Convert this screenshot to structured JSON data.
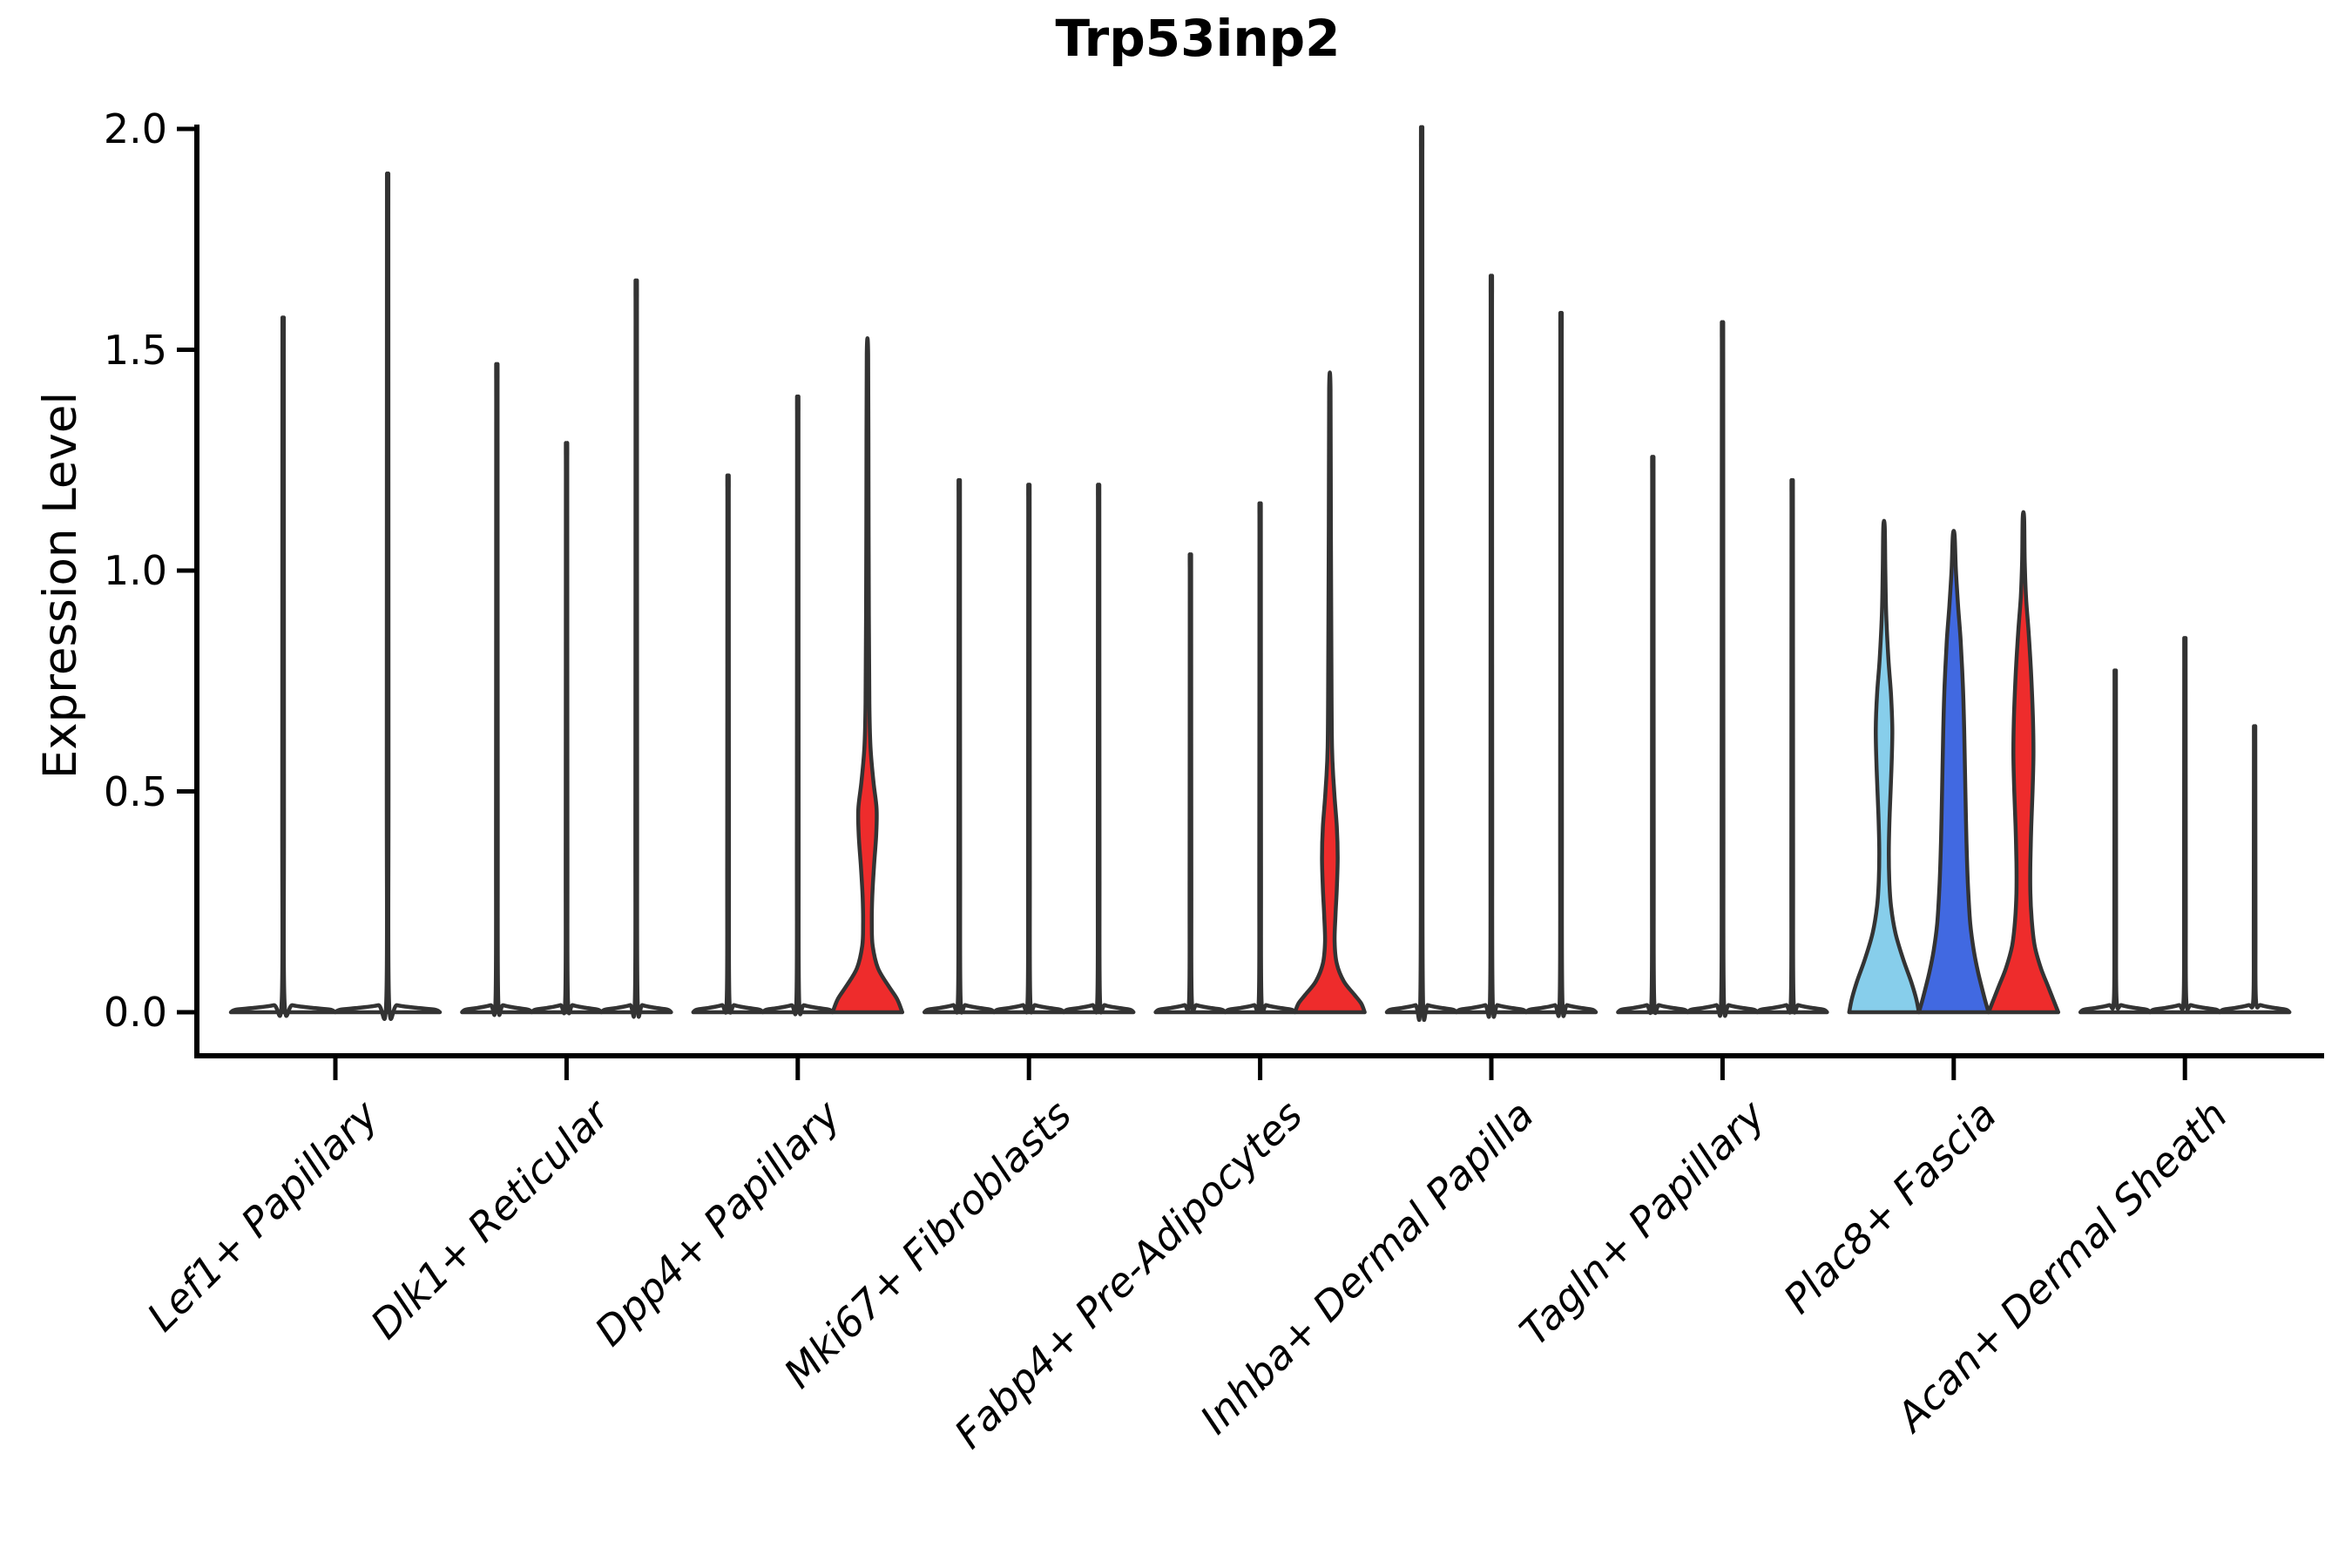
{
  "chart_data": {
    "type": "violin",
    "title": "Trp53inp2",
    "ylabel": "Expression Level",
    "xlabel": "",
    "ylim": [
      -0.095,
      2.006
    ],
    "yticks": [
      0.0,
      0.5,
      1.0,
      1.5,
      2.0
    ],
    "ytick_labels": [
      "0.0",
      "0.5",
      "1.0",
      "1.5",
      "2.0"
    ],
    "grid": false,
    "legend": "none",
    "x_tick_rotation": 45,
    "x_tick_style": "italic",
    "colors": {
      "violin_outline": "#333333",
      "axis": "#000000",
      "white_fill": "#FFFFFF",
      "light_blue_fill": "#87CEEB",
      "dark_blue_fill": "#4169E1",
      "red_fill": "#EE2C2C"
    },
    "categories": [
      "Lef1+ Papillary",
      "Dlk1+ Reticular",
      "Dpp4+ Papillary",
      "Mki67+ Fibroblasts",
      "Fabp4+ Pre-Adipocytes",
      "Inhba+ Dermal Papilla",
      "Tagln+ Papillary",
      "Plac8+ Fascia",
      "Acan+ Dermal Sheath"
    ],
    "groups": [
      {
        "category": "Lef1+ Papillary",
        "violins": [
          {
            "pos": -60,
            "top": 1.51,
            "width": 60,
            "fill": "#FFFFFF",
            "shape": "thin"
          },
          {
            "pos": 60,
            "top": 1.82,
            "width": 60,
            "fill": "#FFFFFF",
            "shape": "thin"
          }
        ]
      },
      {
        "category": "Dlk1+ Reticular",
        "violins": [
          {
            "pos": -80,
            "top": 1.41,
            "width": 40,
            "fill": "#FFFFFF",
            "shape": "thin"
          },
          {
            "pos": 0,
            "top": 1.24,
            "width": 40,
            "fill": "#FFFFFF",
            "shape": "thin"
          },
          {
            "pos": 80,
            "top": 1.59,
            "width": 40,
            "fill": "#FFFFFF",
            "shape": "thin"
          }
        ]
      },
      {
        "category": "Dpp4+ Papillary",
        "violins": [
          {
            "pos": -80,
            "top": 1.17,
            "width": 40,
            "fill": "#FFFFFF",
            "shape": "thin"
          },
          {
            "pos": 0,
            "top": 1.34,
            "width": 40,
            "fill": "#FFFFFF",
            "shape": "thin"
          },
          {
            "pos": 80,
            "top": 1.49,
            "width": 40,
            "fill": "#EE2C2C",
            "shape": "profile",
            "profile": [
              [
                0,
                40
              ],
              [
                0.03,
                34
              ],
              [
                0.06,
                24
              ],
              [
                0.1,
                12
              ],
              [
                0.15,
                6
              ],
              [
                0.2,
                5
              ],
              [
                0.26,
                5.5
              ],
              [
                0.33,
                7.5
              ],
              [
                0.4,
                10
              ],
              [
                0.46,
                10.5
              ],
              [
                0.52,
                7
              ],
              [
                0.6,
                3.5
              ],
              [
                0.7,
                2.2
              ],
              [
                0.9,
                1.6
              ],
              [
                1.2,
                1.2
              ],
              [
                1.49,
                0.8
              ]
            ]
          }
        ]
      },
      {
        "category": "Mki67+ Fibroblasts",
        "violins": [
          {
            "pos": -80,
            "top": 1.16,
            "width": 40,
            "fill": "#FFFFFF",
            "shape": "thin"
          },
          {
            "pos": 0,
            "top": 1.15,
            "width": 40,
            "fill": "#FFFFFF",
            "shape": "thin"
          },
          {
            "pos": 80,
            "top": 1.15,
            "width": 40,
            "fill": "#FFFFFF",
            "shape": "thin"
          }
        ]
      },
      {
        "category": "Fabp4+ Pre-Adipocytes",
        "violins": [
          {
            "pos": -80,
            "top": 1.0,
            "width": 40,
            "fill": "#FFFFFF",
            "shape": "thin"
          },
          {
            "pos": 0,
            "top": 1.11,
            "width": 40,
            "fill": "#FFFFFF",
            "shape": "thin"
          },
          {
            "pos": 80,
            "top": 1.41,
            "width": 40,
            "fill": "#EE2C2C",
            "shape": "profile",
            "profile": [
              [
                0,
                40
              ],
              [
                0.02,
                36
              ],
              [
                0.04,
                28
              ],
              [
                0.07,
                16
              ],
              [
                0.11,
                8
              ],
              [
                0.16,
                5.5
              ],
              [
                0.22,
                6.5
              ],
              [
                0.28,
                8
              ],
              [
                0.35,
                9
              ],
              [
                0.42,
                8
              ],
              [
                0.5,
                5
              ],
              [
                0.6,
                2.5
              ],
              [
                0.8,
                1.8
              ],
              [
                1.1,
                1.2
              ],
              [
                1.41,
                0.8
              ]
            ]
          }
        ]
      },
      {
        "category": "Inhba+ Dermal Papilla",
        "violins": [
          {
            "pos": -80,
            "top": 1.92,
            "width": 40,
            "fill": "#FFFFFF",
            "shape": "thin"
          },
          {
            "pos": 0,
            "top": 1.6,
            "width": 40,
            "fill": "#FFFFFF",
            "shape": "thin"
          },
          {
            "pos": 80,
            "top": 1.52,
            "width": 40,
            "fill": "#FFFFFF",
            "shape": "thin"
          }
        ]
      },
      {
        "category": "Tagln+ Papillary",
        "violins": [
          {
            "pos": -80,
            "top": 1.21,
            "width": 40,
            "fill": "#FFFFFF",
            "shape": "thin"
          },
          {
            "pos": 0,
            "top": 1.5,
            "width": 40,
            "fill": "#FFFFFF",
            "shape": "thin"
          },
          {
            "pos": 80,
            "top": 1.16,
            "width": 40,
            "fill": "#FFFFFF",
            "shape": "thin"
          }
        ]
      },
      {
        "category": "Plac8+ Fascia",
        "violins": [
          {
            "pos": -80,
            "top": 1.1,
            "width": 40,
            "fill": "#87CEEB",
            "shape": "profile",
            "profile": [
              [
                0,
                40
              ],
              [
                0.03,
                37
              ],
              [
                0.07,
                31
              ],
              [
                0.12,
                22
              ],
              [
                0.18,
                13
              ],
              [
                0.24,
                8
              ],
              [
                0.3,
                6
              ],
              [
                0.37,
                5.5
              ],
              [
                0.45,
                6.5
              ],
              [
                0.55,
                8.5
              ],
              [
                0.64,
                9.5
              ],
              [
                0.72,
                8
              ],
              [
                0.8,
                5
              ],
              [
                0.9,
                2.5
              ],
              [
                1.0,
                1.5
              ],
              [
                1.1,
                0.8
              ]
            ]
          },
          {
            "pos": 0,
            "top": 1.08,
            "width": 40,
            "fill": "#4169E1",
            "shape": "profile",
            "profile": [
              [
                0,
                40
              ],
              [
                0.02,
                37
              ],
              [
                0.05,
                33
              ],
              [
                0.09,
                28
              ],
              [
                0.14,
                23
              ],
              [
                0.2,
                19
              ],
              [
                0.28,
                16.5
              ],
              [
                0.36,
                15
              ],
              [
                0.44,
                14
              ],
              [
                0.54,
                13
              ],
              [
                0.64,
                12
              ],
              [
                0.74,
                10.5
              ],
              [
                0.84,
                8
              ],
              [
                0.92,
                5
              ],
              [
                1.0,
                2.5
              ],
              [
                1.08,
                1.0
              ]
            ]
          },
          {
            "pos": 80,
            "top": 1.12,
            "width": 40,
            "fill": "#EE2C2C",
            "shape": "profile",
            "profile": [
              [
                0,
                40
              ],
              [
                0.03,
                34
              ],
              [
                0.06,
                28
              ],
              [
                0.1,
                20
              ],
              [
                0.15,
                13
              ],
              [
                0.21,
                9.5
              ],
              [
                0.27,
                8
              ],
              [
                0.34,
                8
              ],
              [
                0.42,
                9
              ],
              [
                0.5,
                10.5
              ],
              [
                0.58,
                11.5
              ],
              [
                0.66,
                11
              ],
              [
                0.76,
                9
              ],
              [
                0.86,
                6
              ],
              [
                0.94,
                3
              ],
              [
                1.02,
                1.5
              ],
              [
                1.12,
                0.8
              ]
            ]
          }
        ]
      },
      {
        "category": "Acan+ Dermal Sheath",
        "violins": [
          {
            "pos": -80,
            "top": 0.75,
            "width": 40,
            "fill": "#FFFFFF",
            "shape": "thin"
          },
          {
            "pos": 0,
            "top": 0.82,
            "width": 40,
            "fill": "#FFFFFF",
            "shape": "thin"
          },
          {
            "pos": 80,
            "top": 0.63,
            "width": 40,
            "fill": "#FFFFFF",
            "shape": "thin"
          }
        ]
      }
    ]
  }
}
